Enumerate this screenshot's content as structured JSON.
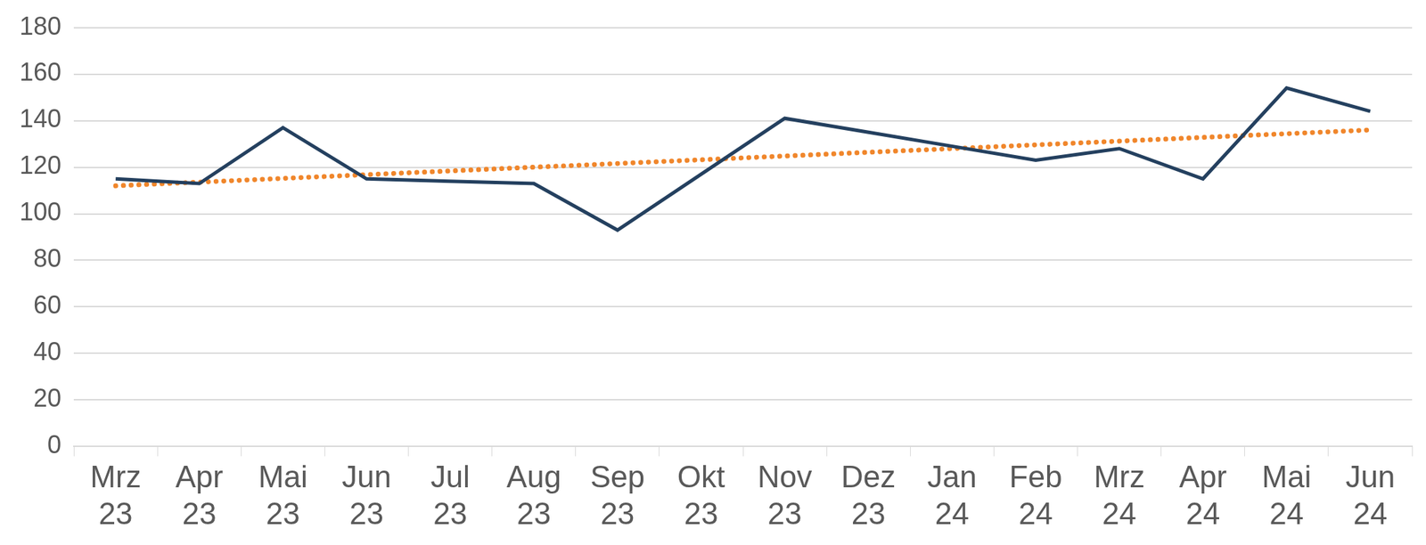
{
  "chart_data": {
    "type": "line",
    "categories": [
      "Mrz 23",
      "Apr 23",
      "Mai 23",
      "Jun 23",
      "Jul 23",
      "Aug 23",
      "Sep 23",
      "Okt 23",
      "Nov 23",
      "Dez 23",
      "Jan 24",
      "Feb 24",
      "Mrz 24",
      "Apr 24",
      "Mai 24",
      "Jun 24"
    ],
    "series": [
      {
        "color": "#24405f",
        "line_style": "solid",
        "values": [
          115,
          113,
          137,
          115,
          114,
          113,
          93,
          117,
          141,
          135,
          129,
          123,
          128,
          115,
          154,
          144
        ]
      },
      {
        "color": "#f0862b",
        "line_style": "dotted",
        "values": [
          112,
          113.6,
          115.2,
          116.8,
          118.4,
          120,
          121.6,
          123.2,
          124.8,
          126.4,
          128,
          129.6,
          131.2,
          132.8,
          134.4,
          136
        ]
      }
    ],
    "ylim": [
      0,
      180
    ],
    "yticks": [
      0,
      20,
      40,
      60,
      80,
      100,
      120,
      140,
      160,
      180
    ],
    "grid": true
  }
}
